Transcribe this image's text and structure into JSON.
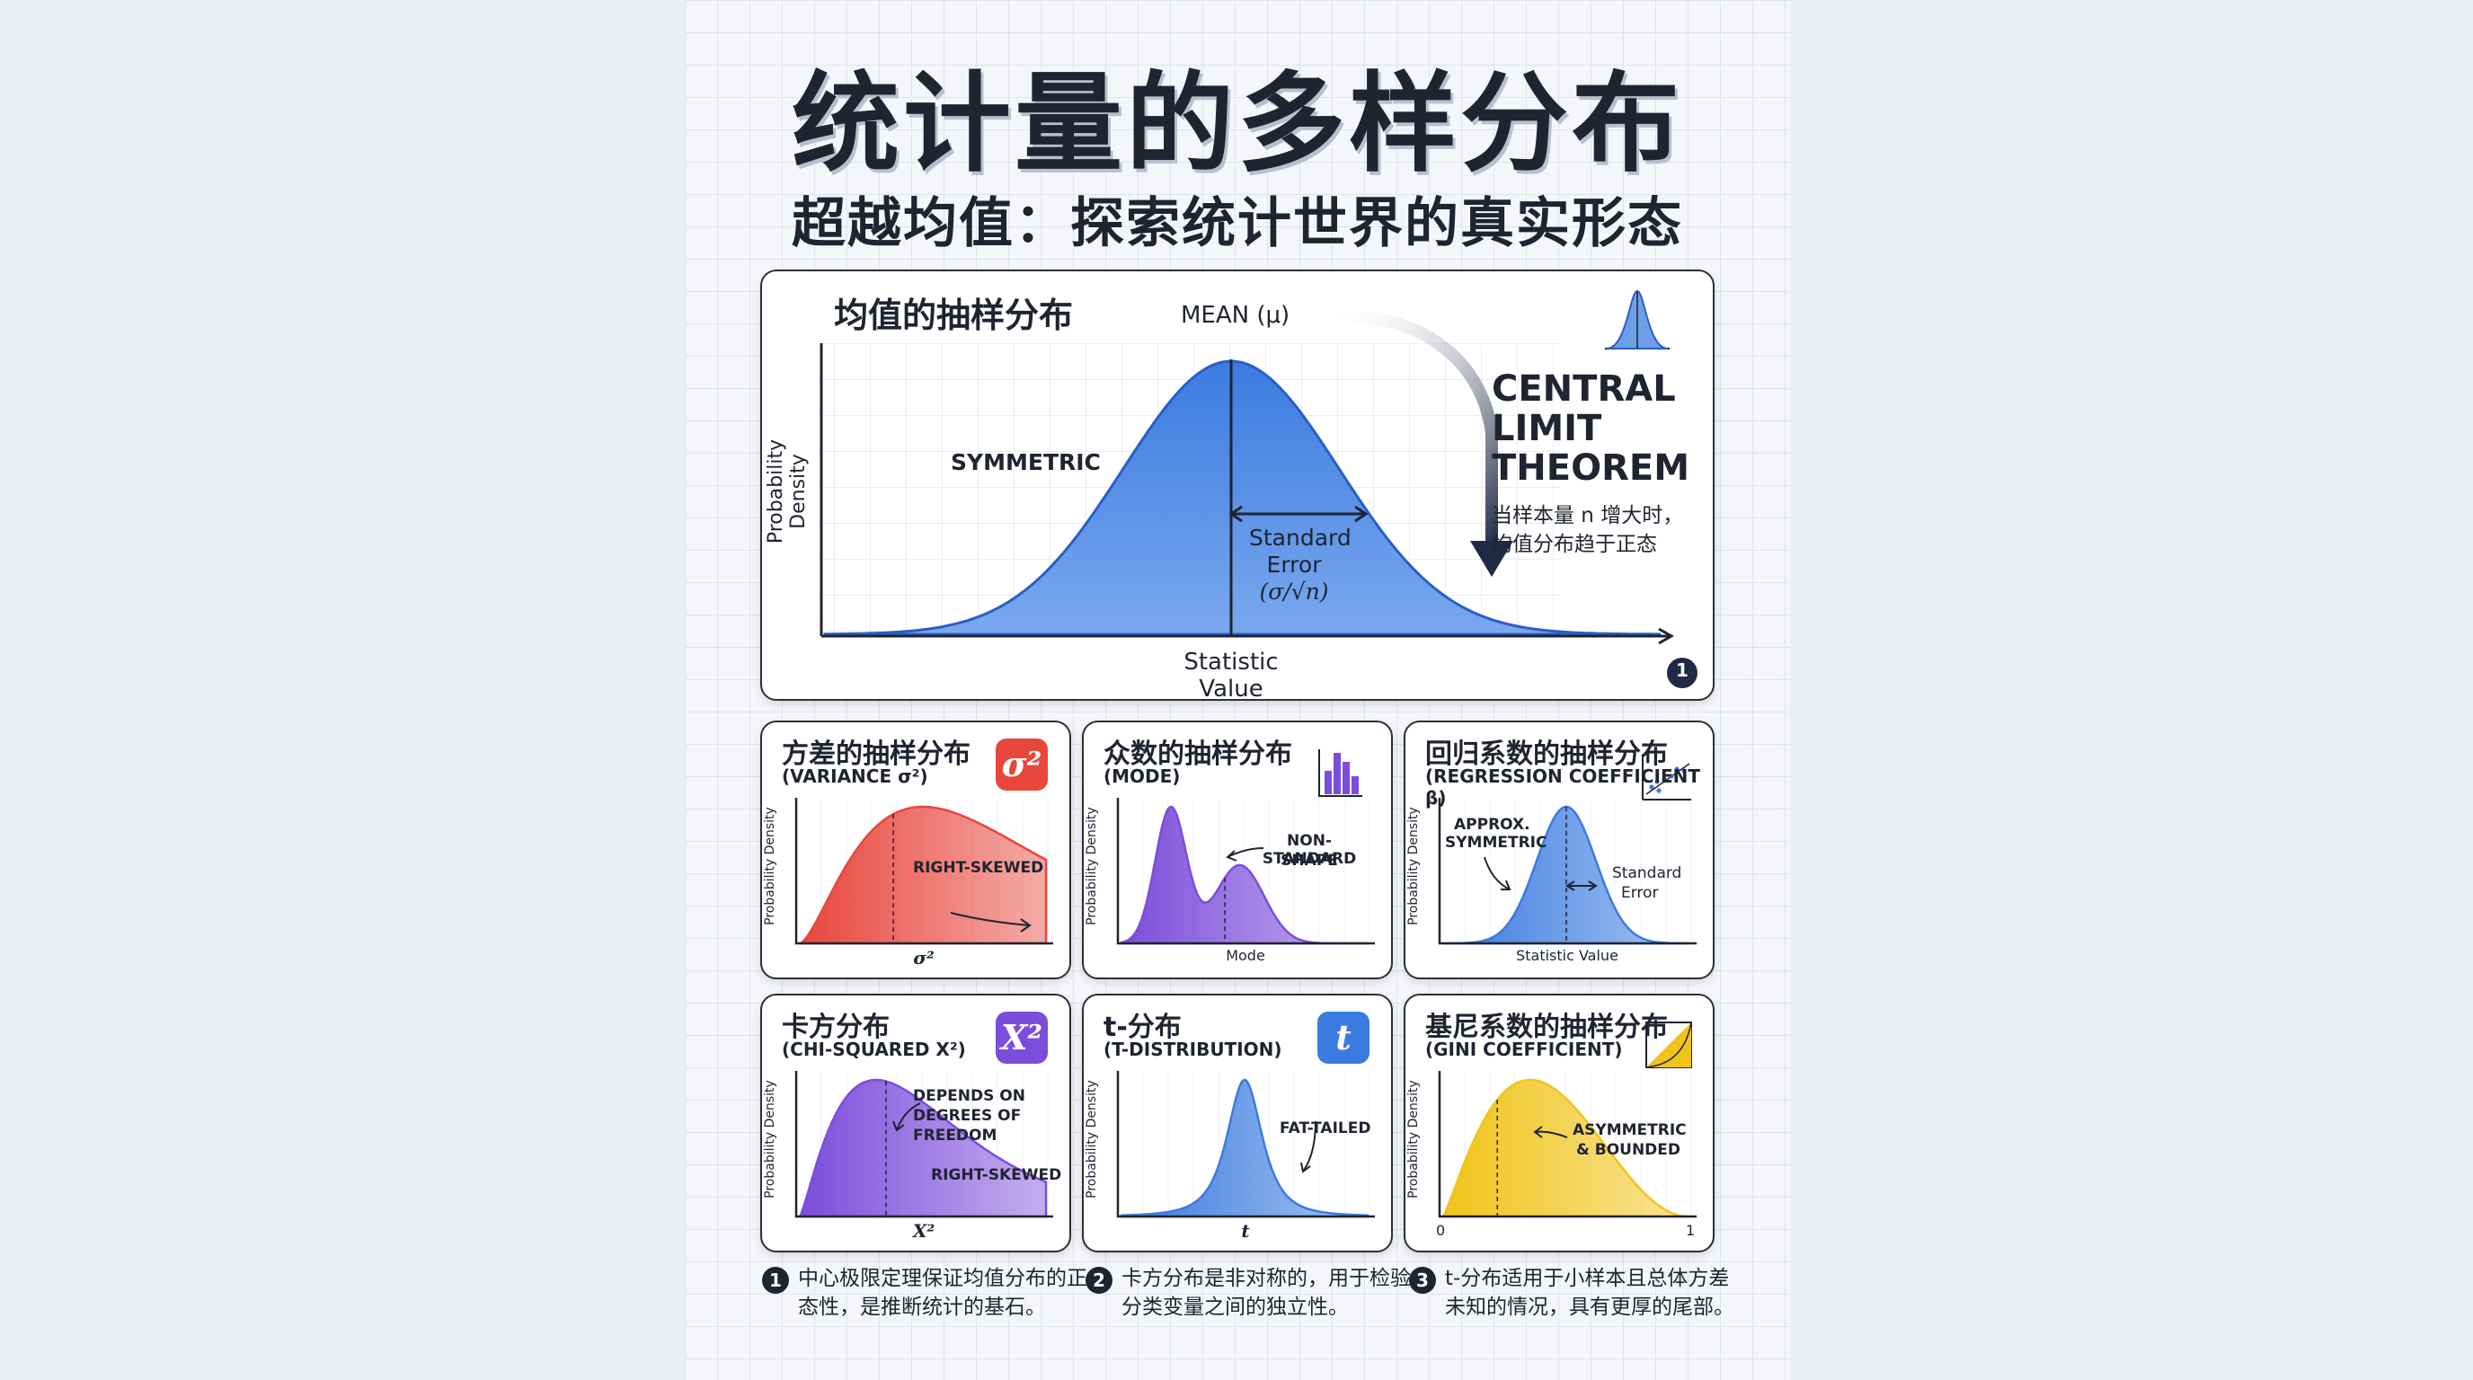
{
  "title": "统计量的多样分布",
  "subtitle": "超越均值：探索统计世界的真实形态",
  "main_panel": {
    "title": "均值的抽样分布",
    "mean_label": "MEAN (μ)",
    "symmetric_label": "SYMMETRIC",
    "se_label_1": "Standard",
    "se_label_2": "Error",
    "se_label_3": "(σ/√n)",
    "ylabel": "Probability Density",
    "xlabel": "Statistic Value",
    "clt_line1": "CENTRAL",
    "clt_line2": "LIMIT",
    "clt_line3": "THEOREM",
    "clt_desc1": "当样本量 n 增大时，",
    "clt_desc2": "均值分布趋于正态",
    "marker": "1",
    "icon": "bell-curve-icon",
    "color": "#3b7be0"
  },
  "panels": [
    {
      "title": "方差的抽样分布",
      "sub": "(VARIANCE σ²)",
      "badge": "σ²",
      "badge_color": "#e8453c",
      "color": "#e8453c",
      "annot1": "RIGHT-SKEWED",
      "annot2": "",
      "annot3": "",
      "xlabel": "σ²",
      "ylabel": "Probability Density"
    },
    {
      "title": "众数的抽样分布",
      "sub": "(MODE)",
      "badge": "",
      "badge_color": "",
      "icon": "histogram-icon",
      "color": "#7c4ddb",
      "annot1": "NON-STANDARD",
      "annot2": "SHAPE",
      "annot3": "",
      "xlabel": "Mode",
      "ylabel": "Probability Density"
    },
    {
      "title": "回归系数的抽样分布",
      "sub": "(REGRESSION COEFFICIENT β)",
      "badge": "",
      "badge_color": "",
      "icon": "scatter-plot-icon",
      "color": "#3b7be0",
      "annot1": "APPROX.",
      "annot2": "SYMMETRIC",
      "annot3": "Standard",
      "annot4": "Error",
      "xlabel": "Statistic Value",
      "ylabel": "Probability Density"
    },
    {
      "title": "卡方分布",
      "sub": "(CHI-SQUARED X²)",
      "badge": "X²",
      "badge_color": "#7c4ddb",
      "color": "#7c4ddb",
      "annot1": "DEPENDS ON",
      "annot2": "DEGREES OF",
      "annot3": "FREEDOM",
      "annot4": "RIGHT-SKEWED",
      "xlabel": "X²",
      "ylabel": "Probability Density"
    },
    {
      "title": "t-分布",
      "sub": "(T-DISTRIBUTION)",
      "badge": "t",
      "badge_color": "#3b7be0",
      "color": "#3b7be0",
      "annot1": "FAT-TAILED",
      "annot2": "",
      "annot3": "",
      "xlabel": "t",
      "ylabel": "Probability Density"
    },
    {
      "title": "基尼系数的抽样分布",
      "sub": "(GINI COEFFICIENT)",
      "badge": "",
      "badge_color": "",
      "icon": "gini-icon",
      "color": "#f0c419",
      "annot1": "ASYMMETRIC",
      "annot2": "& BOUNDED",
      "annot3": "",
      "xlabel": "0",
      "xlabel2": "1",
      "ylabel": "Probability Density"
    }
  ],
  "footnotes": [
    {
      "num": "1",
      "line1": "中心极限定理保证均值分布的正",
      "line2": "态性，是推断统计的基石。"
    },
    {
      "num": "2",
      "line1": "卡方分布是非对称的，用于检验",
      "line2": "分类变量之间的独立性。"
    },
    {
      "num": "3",
      "line1": "t-分布适用于小样本且总体方差",
      "line2": "未知的情况，具有更厚的尾部。"
    }
  ]
}
